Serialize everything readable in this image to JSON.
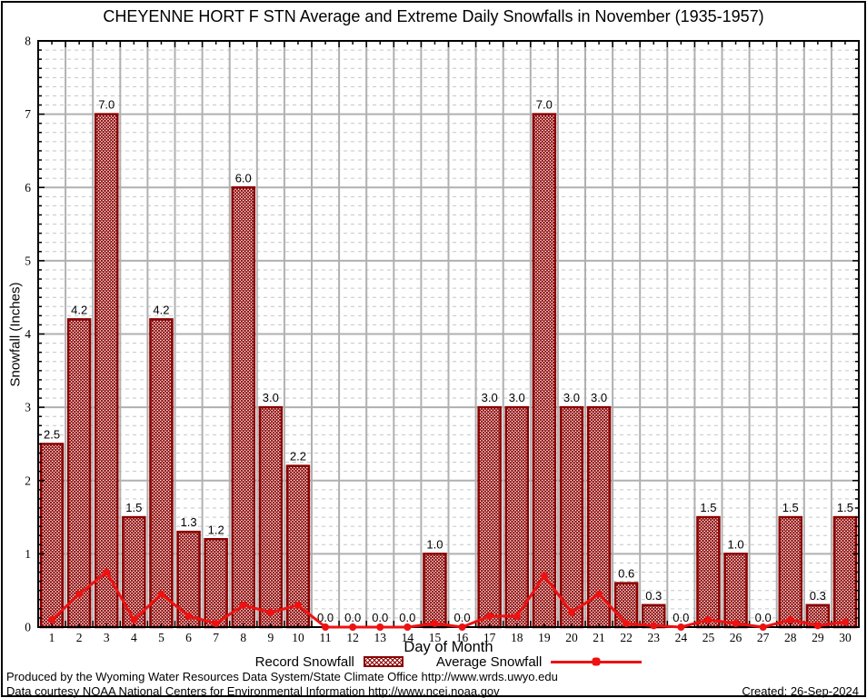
{
  "title": "CHEYENNE HORT F STN Average and Extreme Daily Snowfalls in November (1935-1957)",
  "chart_data": {
    "type": "bar",
    "categories": [
      1,
      2,
      3,
      4,
      5,
      6,
      7,
      8,
      9,
      10,
      11,
      12,
      13,
      14,
      15,
      16,
      17,
      18,
      19,
      20,
      21,
      22,
      23,
      24,
      25,
      26,
      27,
      28,
      29,
      30
    ],
    "series": [
      {
        "name": "Record Snowfall",
        "type": "bar",
        "values": [
          2.5,
          4.2,
          7.0,
          1.5,
          4.2,
          1.3,
          1.2,
          6.0,
          3.0,
          2.2,
          0.0,
          0.0,
          0.0,
          0.0,
          1.0,
          0.0,
          3.0,
          3.0,
          7.0,
          3.0,
          3.0,
          0.6,
          0.3,
          0.0,
          1.5,
          1.0,
          0.0,
          1.5,
          0.3,
          1.5
        ]
      },
      {
        "name": "Average Snowfall",
        "type": "line",
        "values": [
          0.1,
          0.45,
          0.75,
          0.1,
          0.45,
          0.15,
          0.05,
          0.3,
          0.2,
          0.3,
          0.0,
          0.0,
          0.0,
          0.0,
          0.05,
          0.0,
          0.15,
          0.15,
          0.7,
          0.2,
          0.45,
          0.05,
          0.02,
          0.0,
          0.1,
          0.05,
          0.0,
          0.1,
          0.02,
          0.07
        ]
      }
    ],
    "title": "CHEYENNE HORT F STN Average and Extreme Daily Snowfalls in November (1935-1957)",
    "xlabel": "Day of Month",
    "ylabel": "Snowfall (Inches)",
    "ylim": [
      0,
      8
    ],
    "ytick_step": 1,
    "yminor_step": 0.125,
    "grid": true,
    "bar_value_labels": true,
    "legend_position": "bottom",
    "colors": {
      "bar": "#8b0000",
      "line": "#ee1111",
      "grid_major": "#b0b0b0",
      "grid_minor": "#c6c6c6",
      "axis": "#000000",
      "label_text": "#000000"
    }
  },
  "footer": {
    "line1": "Produced by the Wyoming Water Resources Data System/State Climate Office http://www.wrds.uwyo.edu",
    "line2": "Data courtesy NOAA National Centers for Environmental Information http://www.ncei.noaa.gov",
    "created": "Created: 26-Sep-2024"
  }
}
